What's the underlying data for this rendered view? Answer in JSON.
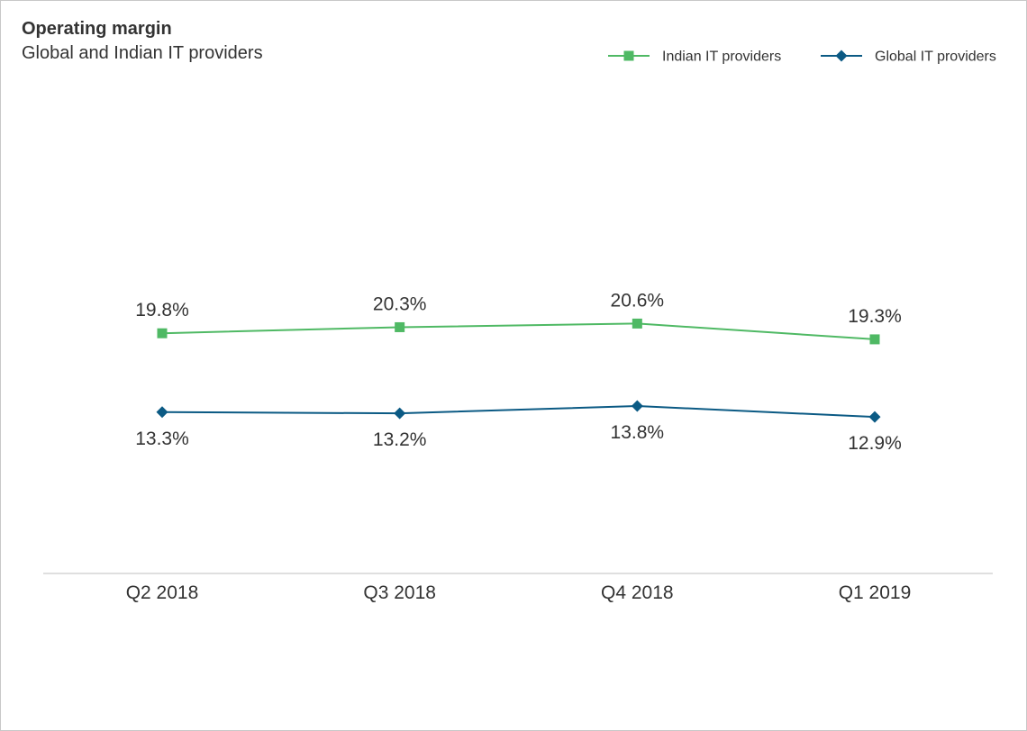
{
  "chart_data": {
    "type": "line",
    "title": "Operating margin",
    "subtitle": "Global and Indian IT providers",
    "categories": [
      "Q2 2018",
      "Q3 2018",
      "Q4 2018",
      "Q1 2019"
    ],
    "series": [
      {
        "name": "Indian IT providers",
        "values": [
          19.8,
          20.3,
          20.6,
          19.3
        ],
        "labels": [
          "19.8%",
          "20.3%",
          "20.6%",
          "19.3%"
        ],
        "color": "#4fb964",
        "marker": "square",
        "label_position": "above"
      },
      {
        "name": "Global IT providers",
        "values": [
          13.3,
          13.2,
          13.8,
          12.9
        ],
        "labels": [
          "13.3%",
          "13.2%",
          "13.8%",
          "12.9%"
        ],
        "color": "#0b5a84",
        "marker": "diamond",
        "label_position": "below"
      }
    ],
    "xlabel": "",
    "ylabel": "",
    "ylim": [
      0,
      40
    ],
    "grid": false,
    "legend": "top-right"
  }
}
